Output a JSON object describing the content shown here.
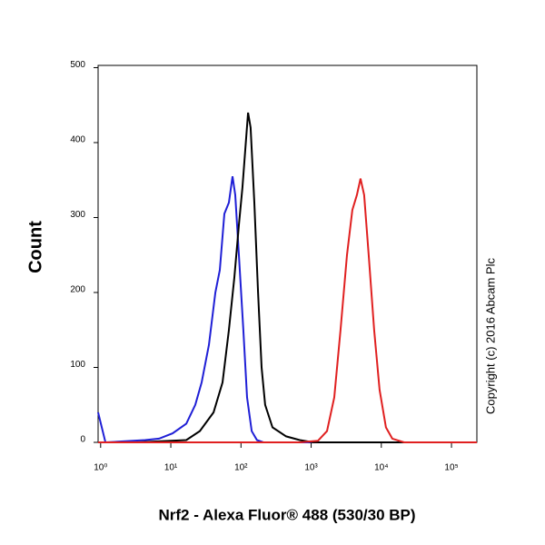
{
  "chart_data": {
    "type": "line",
    "y_label": "Count",
    "x_label": "Nrf2 - Alexa Fluor® 488 (530/30 BP)",
    "annotation": "Copyright (c) 2016 Abcam Plc",
    "x_scale": "log",
    "xlim": [
      0.92,
      230000
    ],
    "ylim": [
      0,
      503
    ],
    "xticks": [
      {
        "value": 1,
        "label": "10⁰"
      },
      {
        "value": 10,
        "label": "10¹"
      },
      {
        "value": 100,
        "label": "10²"
      },
      {
        "value": 1000,
        "label": "10³"
      },
      {
        "value": 10000,
        "label": "10⁴"
      },
      {
        "value": 100000,
        "label": "10⁵"
      }
    ],
    "yticks": [
      0,
      100,
      200,
      300,
      400,
      500
    ],
    "series": [
      {
        "color": "#1f1fd6",
        "x": [
          0.92,
          1.17,
          4.3,
          6.8,
          10.6,
          16.6,
          22.3,
          27.5,
          34.9,
          43.1,
          50,
          58,
          67.3,
          75.9,
          82.8,
          93.3,
          108,
          122,
          142,
          169,
          209,
          230000
        ],
        "values": [
          40,
          0,
          3,
          5,
          12,
          25,
          50,
          80,
          130,
          200,
          230,
          305,
          320,
          355,
          330,
          250,
          150,
          60,
          15,
          3,
          0,
          0
        ]
      },
      {
        "color": "#000000",
        "x": [
          3.2,
          16.6,
          25.9,
          40.6,
          54.6,
          67.3,
          80.5,
          93.3,
          105,
          115,
          126,
          137,
          155,
          175,
          197,
          221,
          281,
          440,
          687,
          1075,
          230000
        ],
        "values": [
          0,
          3,
          15,
          40,
          80,
          150,
          220,
          290,
          340,
          390,
          440,
          420,
          320,
          200,
          100,
          50,
          20,
          8,
          3,
          0,
          0
        ]
      },
      {
        "color": "#e02020",
        "x": [
          0.92,
          687,
          1247,
          1680,
          2133,
          2624,
          3236,
          3864,
          4487,
          5058,
          5690,
          6607,
          7907,
          9441,
          11640,
          14350,
          21130,
          230000
        ],
        "values": [
          0,
          0,
          2,
          15,
          60,
          150,
          250,
          310,
          330,
          352,
          330,
          250,
          150,
          70,
          20,
          5,
          0,
          0
        ]
      }
    ]
  }
}
